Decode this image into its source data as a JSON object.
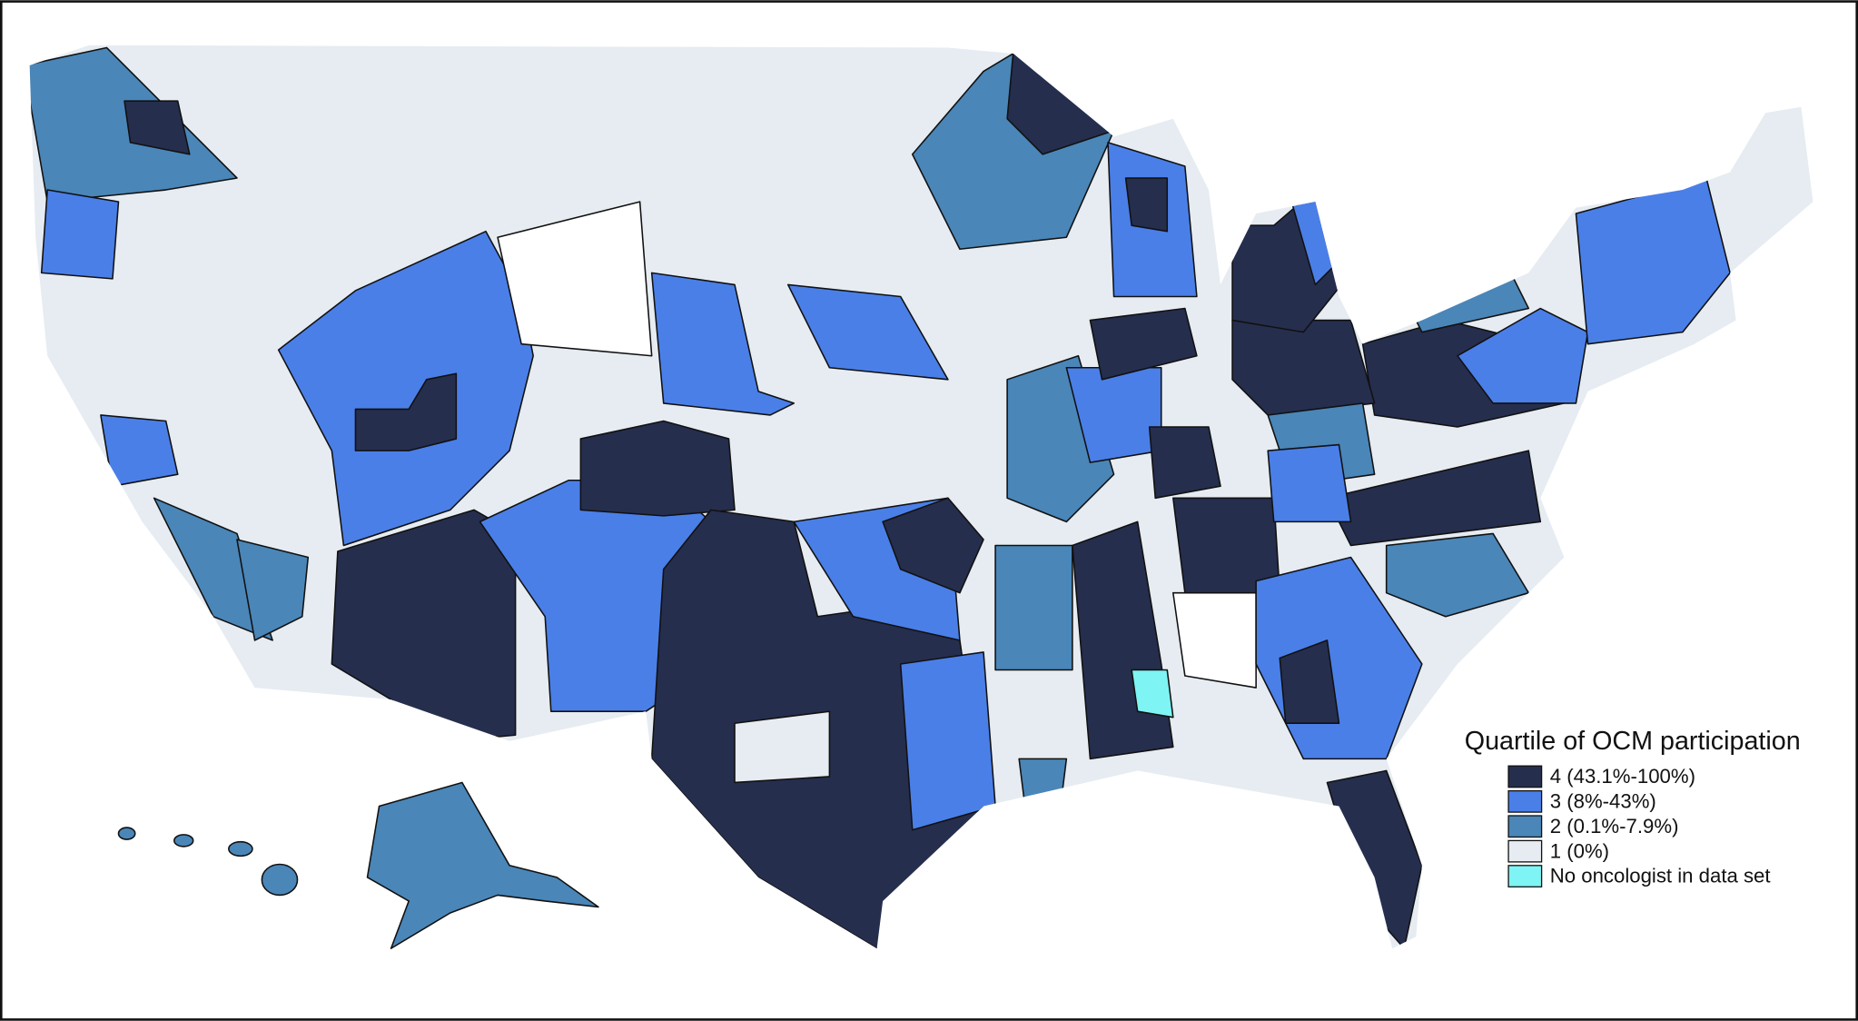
{
  "legend": {
    "title": "Quartile of OCM participation",
    "items": [
      {
        "label": "4 (43.1%-100%)",
        "color": "#262e4e"
      },
      {
        "label": "3 (8%-43%)",
        "color": "#4a7fe8"
      },
      {
        "label": "2 (0.1%-7.9%)",
        "color": "#4a86b8"
      },
      {
        "label": "1 (0%)",
        "color": "#e6ecf1"
      },
      {
        "label": "No oncologist in data set",
        "color": "#7ef4f4"
      }
    ]
  }
}
